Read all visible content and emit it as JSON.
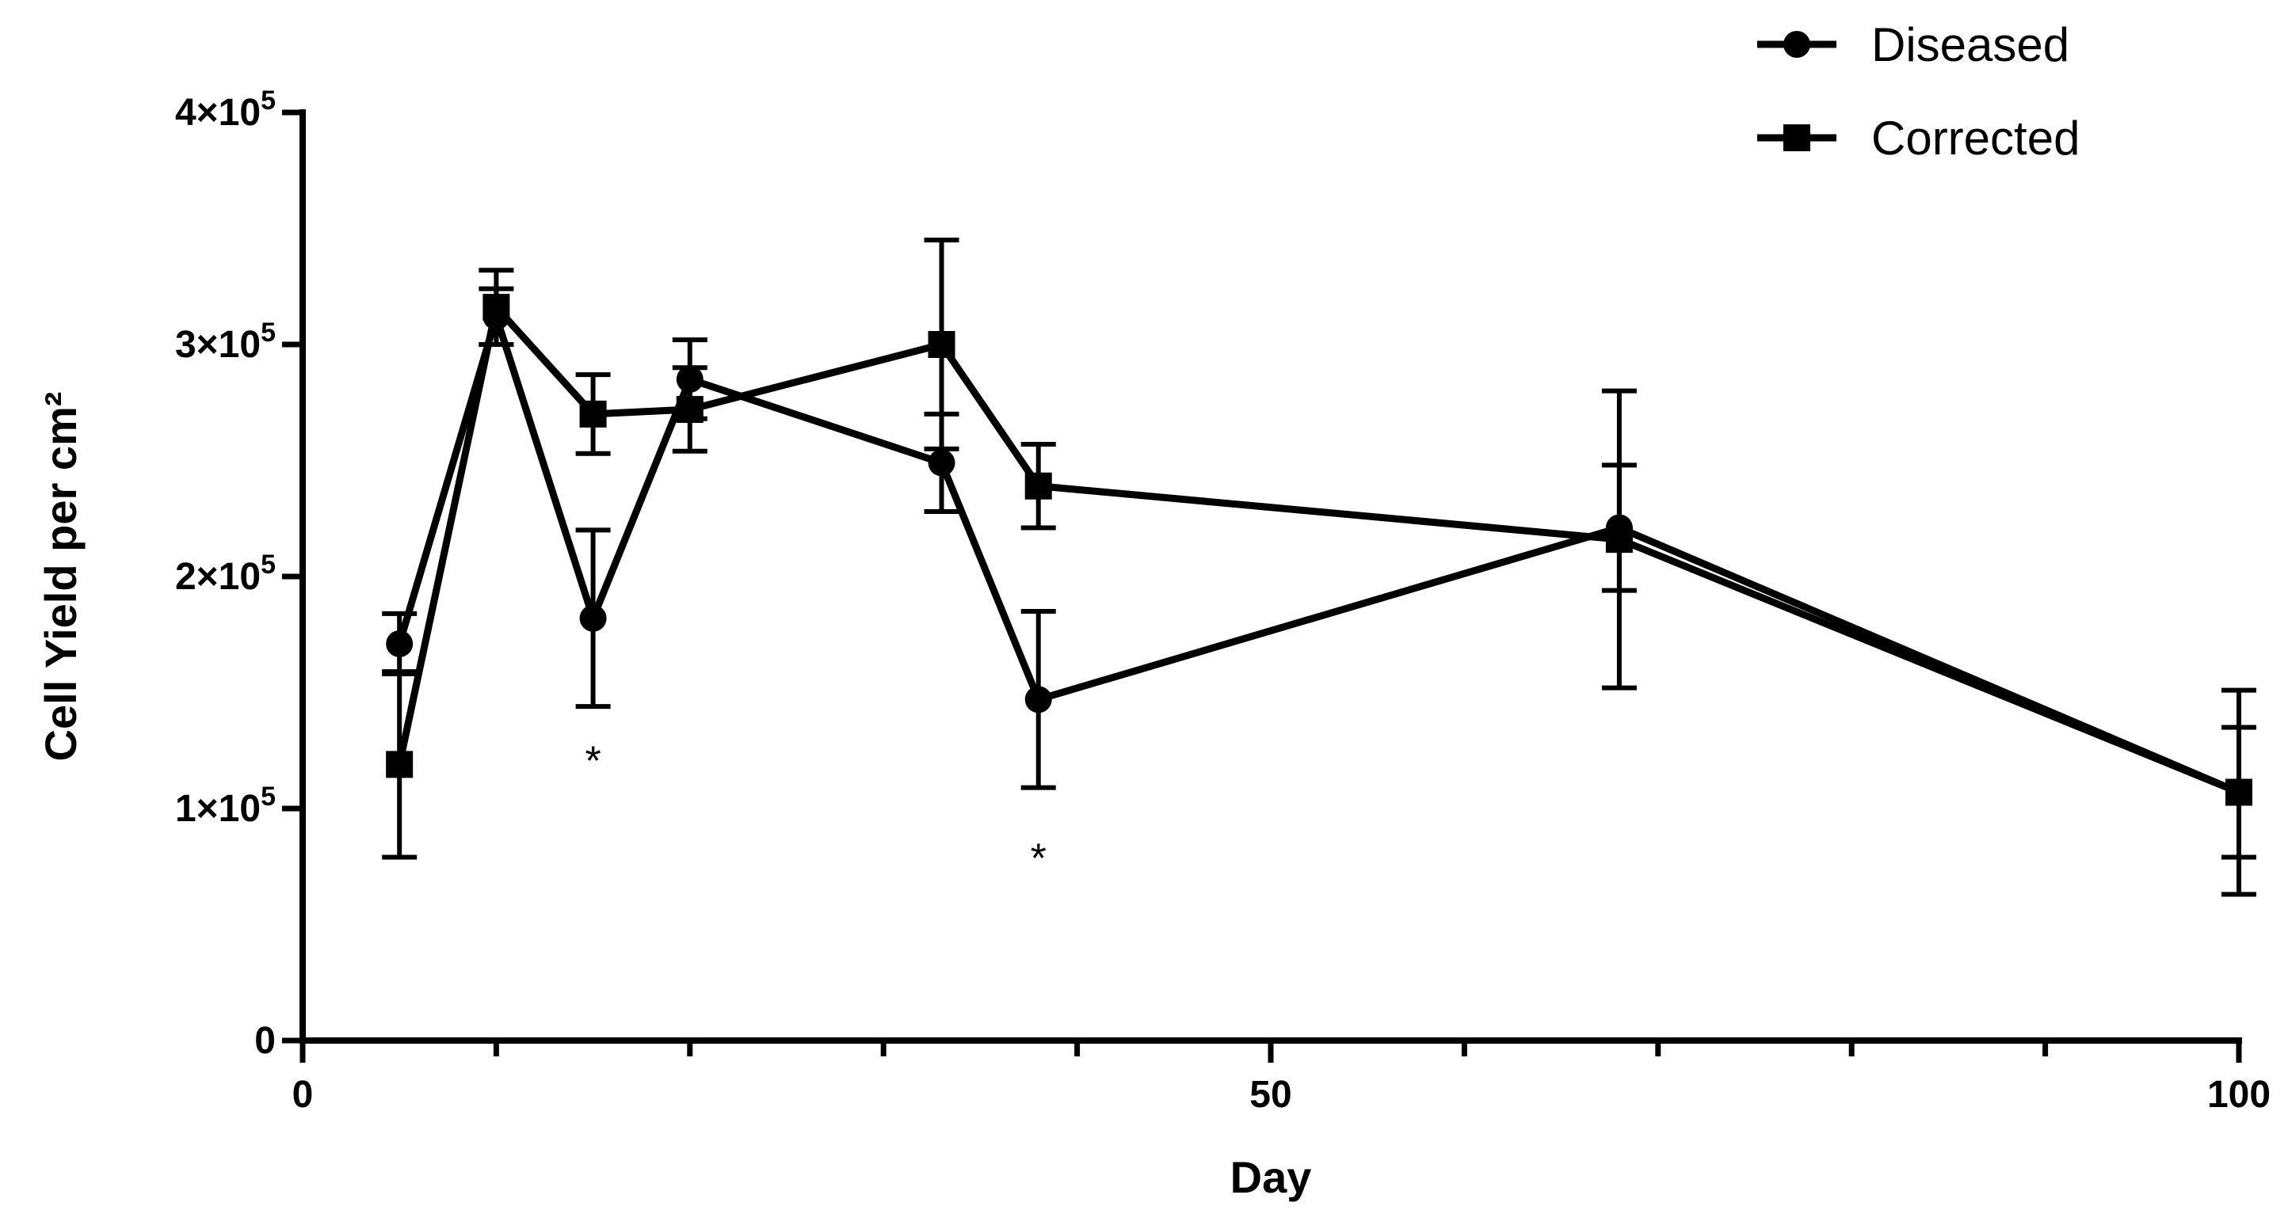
{
  "chart_data": {
    "type": "line",
    "title": "",
    "xlabel": "Day",
    "ylabel": "Cell Yield per cm²",
    "xlim": [
      0,
      100
    ],
    "ylim": [
      0,
      400000
    ],
    "x_ticks": [
      {
        "value": 0,
        "label": "0"
      },
      {
        "value": 50,
        "label": "50"
      },
      {
        "value": 100,
        "label": "100"
      }
    ],
    "x_minor_ticks": [
      10,
      20,
      30,
      40,
      60,
      70,
      80,
      90
    ],
    "y_ticks": [
      {
        "value": 0,
        "label": "0",
        "exp": ""
      },
      {
        "value": 100000,
        "label": "1×10",
        "exp": "5"
      },
      {
        "value": 200000,
        "label": "2×10",
        "exp": "5"
      },
      {
        "value": 300000,
        "label": "3×10",
        "exp": "5"
      },
      {
        "value": 400000,
        "label": "4×10",
        "exp": "5"
      }
    ],
    "legend_position": "top-right",
    "series": [
      {
        "name": "Diseased",
        "marker": "circle",
        "points": [
          {
            "x": 5,
            "y": 171000,
            "err": 13000
          },
          {
            "x": 10,
            "y": 312000,
            "err": 12000
          },
          {
            "x": 15,
            "y": 182000,
            "err": 38000
          },
          {
            "x": 20,
            "y": 285000,
            "err": 17000
          },
          {
            "x": 33,
            "y": 249000,
            "err": 21000
          },
          {
            "x": 38,
            "y": 147000,
            "err": 38000
          },
          {
            "x": 68,
            "y": 221000,
            "err": 27000
          },
          {
            "x": 100,
            "y": 107000,
            "err": 28000
          }
        ]
      },
      {
        "name": "Corrected",
        "marker": "square",
        "points": [
          {
            "x": 5,
            "y": 119000,
            "err": 40000
          },
          {
            "x": 10,
            "y": 316000,
            "err": 16000
          },
          {
            "x": 15,
            "y": 270000,
            "err": 17000
          },
          {
            "x": 20,
            "y": 272000,
            "err": 18000
          },
          {
            "x": 33,
            "y": 300000,
            "err": 45000
          },
          {
            "x": 38,
            "y": 239000,
            "err": 18000
          },
          {
            "x": 68,
            "y": 216000,
            "err": 64000
          },
          {
            "x": 100,
            "y": 107000,
            "err": 44000
          }
        ]
      }
    ],
    "annotations": [
      {
        "text": "*",
        "x": 15,
        "y": 122000
      },
      {
        "text": "*",
        "x": 38,
        "y": 80000
      }
    ]
  }
}
